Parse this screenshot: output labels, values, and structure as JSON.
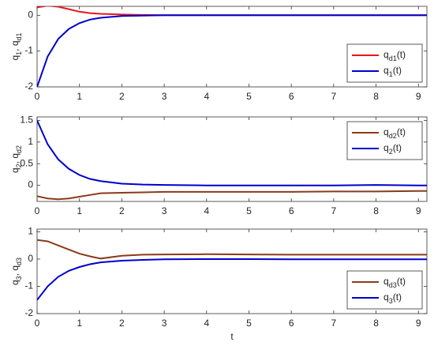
{
  "chart_data": [
    {
      "type": "line",
      "ylabel": "q1, qd1",
      "legend": "lower right",
      "x": [
        0,
        0.25,
        0.5,
        0.75,
        1,
        1.25,
        1.5,
        2,
        2.5,
        3,
        4,
        5,
        6,
        7,
        8,
        9,
        9.2
      ],
      "xlim": [
        0,
        9.2
      ],
      "xticks": [
        0,
        1,
        2,
        3,
        4,
        5,
        6,
        7,
        8,
        9
      ],
      "ylim": [
        -2,
        0.25
      ],
      "yticks": [
        -2,
        -1,
        0
      ],
      "series": [
        {
          "name": "qd1(t)",
          "color": "#e8161b",
          "values": [
            0.22,
            0.27,
            0.24,
            0.17,
            0.1,
            0.06,
            0.04,
            0.02,
            0.01,
            0,
            0,
            0,
            0,
            0,
            0,
            0,
            0
          ]
        },
        {
          "name": "q1(t)",
          "color": "#0000cc",
          "values": [
            -2,
            -1.15,
            -0.66,
            -0.38,
            -0.22,
            -0.12,
            -0.07,
            -0.02,
            -0.01,
            0,
            0,
            0,
            0,
            0,
            0,
            0,
            0
          ]
        }
      ]
    },
    {
      "type": "line",
      "ylabel": "q2, qd2",
      "legend": "upper right",
      "x": [
        0,
        0.25,
        0.5,
        0.75,
        1,
        1.25,
        1.5,
        2,
        2.5,
        3,
        4,
        5,
        6,
        7,
        8,
        9,
        9.2
      ],
      "xlim": [
        0,
        9.2
      ],
      "xticks": [
        0,
        1,
        2,
        3,
        4,
        5,
        6,
        7,
        8,
        9
      ],
      "ylim": [
        -0.37,
        1.58
      ],
      "yticks": [
        0,
        0.5,
        1,
        1.5
      ],
      "series": [
        {
          "name": "qd2(t)",
          "color": "#8b3a1a",
          "values": [
            -0.25,
            -0.3,
            -0.32,
            -0.3,
            -0.26,
            -0.22,
            -0.18,
            -0.17,
            -0.16,
            -0.15,
            -0.15,
            -0.15,
            -0.15,
            -0.14,
            -0.14,
            -0.13,
            -0.13
          ]
        },
        {
          "name": "q2(t)",
          "color": "#0000cc",
          "values": [
            1.5,
            0.95,
            0.6,
            0.38,
            0.24,
            0.15,
            0.1,
            0.04,
            0.02,
            0.01,
            0,
            0,
            0,
            0,
            0.01,
            0,
            0
          ]
        }
      ]
    },
    {
      "type": "line",
      "ylabel": "q3, qd3",
      "xlabel": "t",
      "legend": "lower right",
      "x": [
        0,
        0.25,
        0.5,
        0.75,
        1,
        1.25,
        1.5,
        2,
        2.5,
        3,
        4,
        5,
        6,
        7,
        8,
        9,
        9.2
      ],
      "xlim": [
        0,
        9.2
      ],
      "xticks": [
        0,
        1,
        2,
        3,
        4,
        5,
        6,
        7,
        8,
        9
      ],
      "ylim": [
        -2,
        1.1
      ],
      "yticks": [
        -2,
        -1,
        0,
        1
      ],
      "series": [
        {
          "name": "qd3(t)",
          "color": "#8b3a1a",
          "values": [
            0.7,
            0.65,
            0.5,
            0.35,
            0.2,
            0.1,
            0.02,
            0.12,
            0.16,
            0.17,
            0.18,
            0.17,
            0.16,
            0.16,
            0.16,
            0.16,
            0.16
          ]
        },
        {
          "name": "q3(t)",
          "color": "#0000cc",
          "values": [
            -1.5,
            -1.0,
            -0.65,
            -0.43,
            -0.29,
            -0.19,
            -0.12,
            -0.06,
            -0.03,
            -0.01,
            0,
            0,
            -0.01,
            -0.01,
            -0.01,
            -0.01,
            -0.01
          ]
        }
      ]
    }
  ]
}
